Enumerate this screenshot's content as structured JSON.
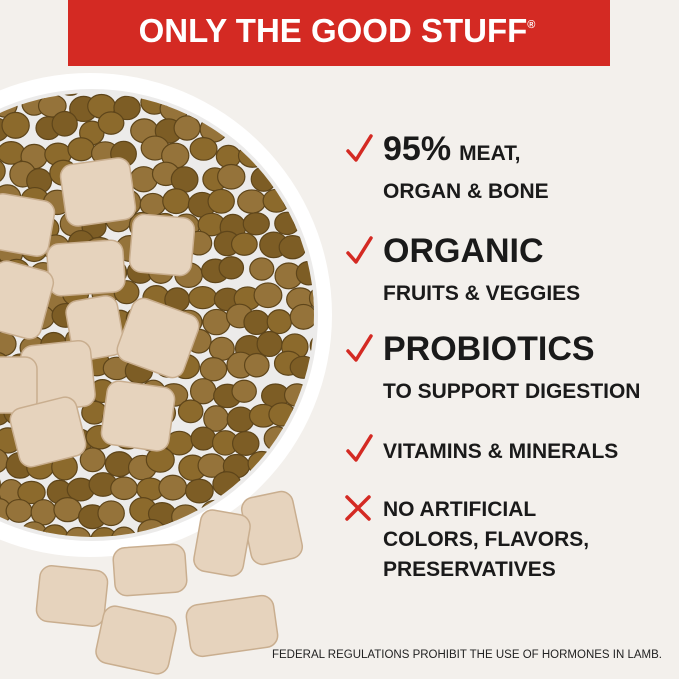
{
  "header": {
    "title": "ONLY THE GOOD STUFF",
    "mark": "®"
  },
  "items": [
    {
      "icon": "check",
      "lead": "95%",
      "lead_small": "MEAT,",
      "lines": [
        "ORGAN & BONE"
      ]
    },
    {
      "icon": "check",
      "lead": "ORGANIC",
      "lines": [
        "FRUITS & VEGGIES"
      ]
    },
    {
      "icon": "check",
      "lead": "PROBIOTICS",
      "lines": [
        "TO SUPPORT DIGESTION"
      ]
    },
    {
      "icon": "check",
      "lines": [
        "VITAMINS & MINERALS"
      ]
    },
    {
      "icon": "cross",
      "lines": [
        "NO ARTIFICIAL",
        "COLORS, FLAVORS,",
        "PRESERVATIVES"
      ]
    }
  ],
  "footnote": "FEDERAL REGULATIONS PROHIBIT THE USE OF HORMONES IN LAMB."
}
